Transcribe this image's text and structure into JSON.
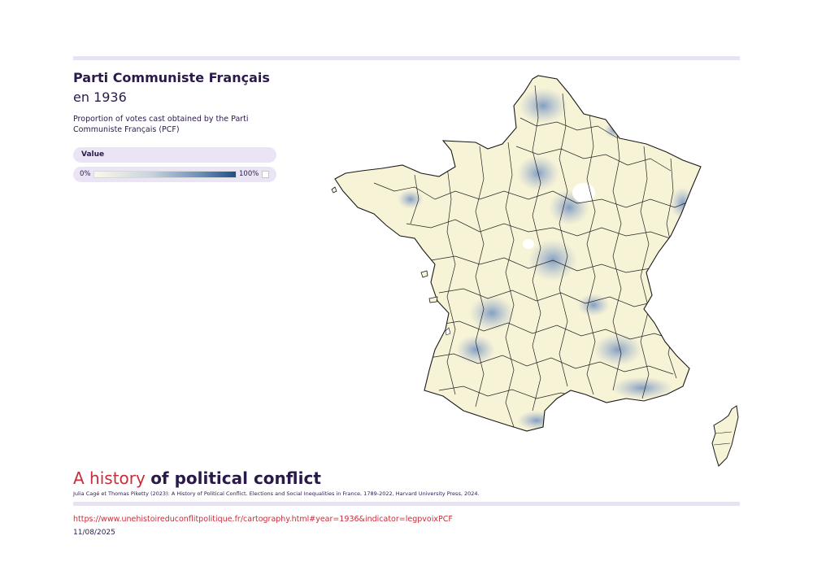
{
  "header": {
    "title": "Parti Communiste Français",
    "subtitle": "en 1936",
    "description": "Proportion of votes cast obtained by the Parti Communiste Français (PCF)"
  },
  "legend": {
    "header": "Value",
    "min_label": "0%",
    "max_label": "100%",
    "min_value": 0,
    "max_value": 100,
    "colors": {
      "low": "#fbf8e8",
      "mid": "#6a8fb8",
      "high": "#1f4e8a",
      "no_data": "#ffffff"
    }
  },
  "map": {
    "area": "France (departments)",
    "border_color": "#222222",
    "land_color": "#f7f3d6",
    "high_share_color": "#7f9cc4"
  },
  "footer": {
    "brand_light": "A history",
    "brand_bold": "of political conflict",
    "citation": "Julia Cagé et Thomas Piketty (2023): A History of Political Conflict. Elections and Social Inequalities in France, 1789-2022, Harvard University Press, 2024.",
    "url": "https://www.unehistoireduconflitpolitique.fr/cartography.html#year=1936&indicator=legpvoixPCF",
    "date": "11/08/2025"
  },
  "colors": {
    "accent": "#c62f3a",
    "text": "#2a1a4a",
    "panel": "#ebe4f5"
  }
}
